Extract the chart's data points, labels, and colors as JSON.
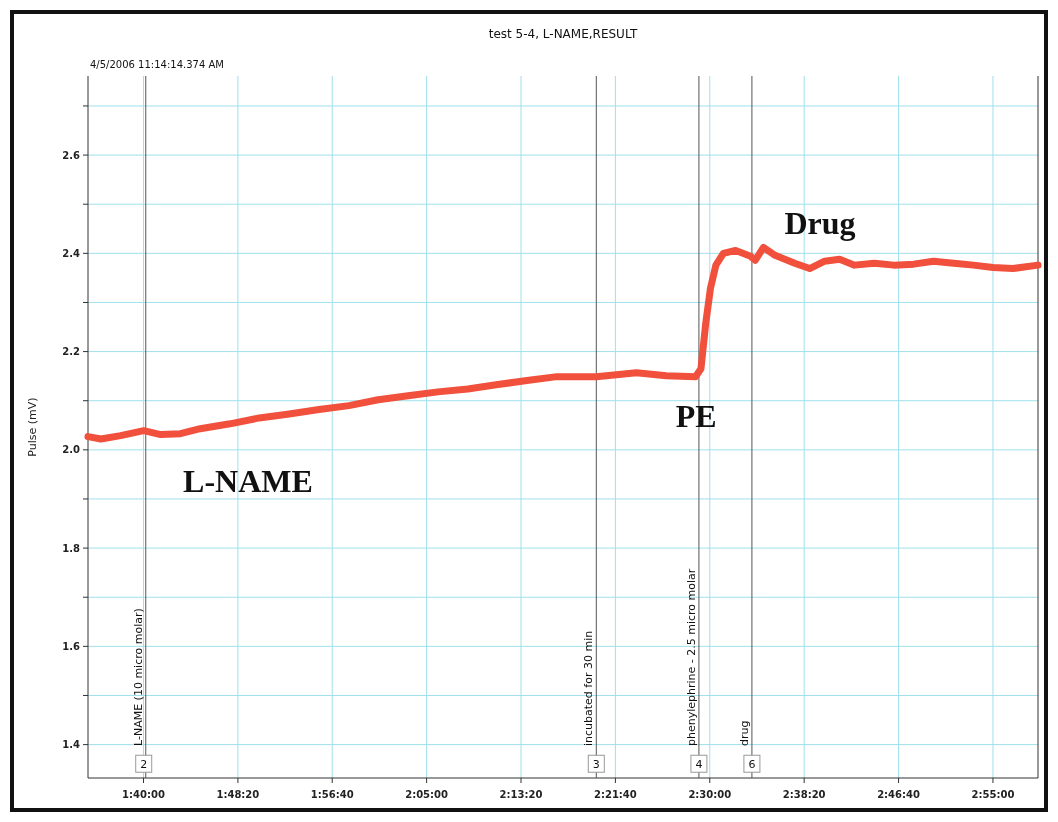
{
  "chart_data": {
    "type": "line",
    "title": "test 5-4, L-NAME,RESULT",
    "ylabel": "Pulse (mV)",
    "grid": true,
    "marker": "none",
    "line_style": "solid",
    "xlim": [
      1.585,
      2.983
    ],
    "ylim": [
      1.332,
      2.761
    ],
    "xticks": [
      {
        "value": 1.6667,
        "label": "1:40:00"
      },
      {
        "value": 1.8056,
        "label": "1:48:20"
      },
      {
        "value": 1.9444,
        "label": "1:56:40"
      },
      {
        "value": 2.0833,
        "label": "2:05:00"
      },
      {
        "value": 2.2222,
        "label": "2:13:20"
      },
      {
        "value": 2.3611,
        "label": "2:21:40"
      },
      {
        "value": 2.5,
        "label": "2:30:00"
      },
      {
        "value": 2.6389,
        "label": "2:38:20"
      },
      {
        "value": 2.7778,
        "label": "2:46:40"
      },
      {
        "value": 2.9167,
        "label": "2:55:00"
      }
    ],
    "yticks": [
      {
        "value": 1.4,
        "label": "1.4"
      },
      {
        "value": 1.5,
        "label": null
      },
      {
        "value": 1.6,
        "label": "1.6"
      },
      {
        "value": 1.7,
        "label": null
      },
      {
        "value": 1.8,
        "label": "1.8"
      },
      {
        "value": 1.9,
        "label": null
      },
      {
        "value": 2.0,
        "label": "2.0"
      },
      {
        "value": 2.1,
        "label": null
      },
      {
        "value": 2.2,
        "label": "2.2"
      },
      {
        "value": 2.3,
        "label": null
      },
      {
        "value": 2.4,
        "label": "2.4"
      },
      {
        "value": 2.5,
        "label": null
      },
      {
        "value": 2.6,
        "label": "2.6"
      },
      {
        "value": 2.7,
        "label": null
      }
    ],
    "series": [
      {
        "color": "#f0503c",
        "x": [
          1.585,
          1.604,
          1.633,
          1.667,
          1.692,
          1.721,
          1.75,
          1.794,
          1.837,
          1.881,
          1.925,
          1.969,
          2.012,
          2.056,
          2.1,
          2.144,
          2.188,
          2.231,
          2.275,
          2.333,
          2.392,
          2.436,
          2.479,
          2.487,
          2.494,
          2.501,
          2.509,
          2.52,
          2.538,
          2.56,
          2.567,
          2.579,
          2.596,
          2.625,
          2.647,
          2.669,
          2.691,
          2.713,
          2.742,
          2.771,
          2.8,
          2.829,
          2.859,
          2.888,
          2.917,
          2.946,
          2.983
        ],
        "values": [
          2.027,
          2.022,
          2.029,
          2.039,
          2.031,
          2.033,
          2.043,
          2.053,
          2.065,
          2.073,
          2.082,
          2.09,
          2.102,
          2.11,
          2.118,
          2.124,
          2.133,
          2.141,
          2.149,
          2.149,
          2.157,
          2.151,
          2.149,
          2.165,
          2.257,
          2.329,
          2.376,
          2.4,
          2.406,
          2.394,
          2.386,
          2.412,
          2.396,
          2.38,
          2.369,
          2.384,
          2.388,
          2.376,
          2.38,
          2.376,
          2.378,
          2.384,
          2.38,
          2.376,
          2.371,
          2.369,
          2.376
        ]
      }
    ],
    "ref_lines": [
      {
        "axis": "x",
        "value": 1.67,
        "label": "L-NAME (10 micro molar)",
        "color": "#555555"
      },
      {
        "axis": "x",
        "value": 2.333,
        "label": "incubated for 30 min",
        "color": "#555555"
      },
      {
        "axis": "x",
        "value": 2.484,
        "label": "phenylephrine - 2.5 micro molar",
        "color": "#555555"
      },
      {
        "axis": "x",
        "value": 2.562,
        "label": "drug",
        "color": "#555555"
      }
    ],
    "annotations": [
      "4/5/2006 11:14:14.374 AM",
      "L-NAME",
      {
        "text": "PE",
        "x": 2.48,
        "y": 2.07
      },
      "Drug",
      {
        "text": "2",
        "x": 1.667,
        "y": 1.36
      },
      {
        "text": "3",
        "x": 2.333,
        "y": 1.36
      },
      {
        "text": "4",
        "x": 2.484,
        "y": 1.36
      },
      {
        "text": "6",
        "x": 2.562,
        "y": 1.36
      }
    ]
  }
}
